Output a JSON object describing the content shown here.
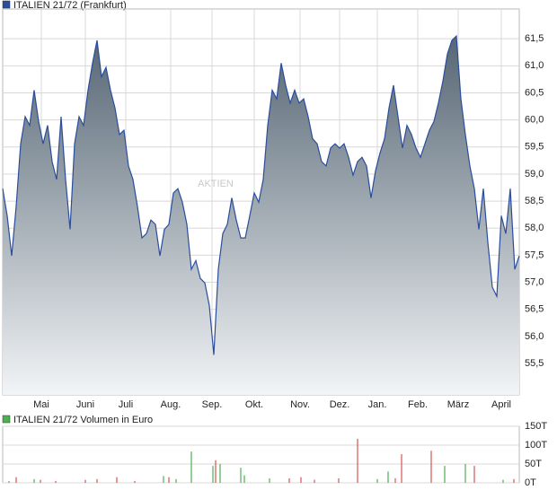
{
  "chart_data": [
    {
      "type": "area",
      "title": "ITALIEN 21/72 (Frankfurt)",
      "watermark": "AKTIEN",
      "color": "#2a4d9c",
      "fill_top": "#566674",
      "fill_bottom": "#f2f4f6",
      "values": [
        58.73,
        58.23,
        57.49,
        58.4,
        59.56,
        60.06,
        59.9,
        60.55,
        59.97,
        59.56,
        59.9,
        59.23,
        58.9,
        60.06,
        58.9,
        57.98,
        59.56,
        60.06,
        59.9,
        60.55,
        61.05,
        61.47,
        60.8,
        60.97,
        60.55,
        60.22,
        59.73,
        59.81,
        59.15,
        58.9,
        58.4,
        57.82,
        57.9,
        58.15,
        58.07,
        57.49,
        57.98,
        58.07,
        58.65,
        58.73,
        58.48,
        58.07,
        57.24,
        57.4,
        57.07,
        56.99,
        56.57,
        55.66,
        57.24,
        57.9,
        58.07,
        58.56,
        58.15,
        57.82,
        57.82,
        58.23,
        58.65,
        58.48,
        58.9,
        59.9,
        60.55,
        60.39,
        61.05,
        60.64,
        60.31,
        60.55,
        60.31,
        60.39,
        60.06,
        59.65,
        59.56,
        59.23,
        59.15,
        59.48,
        59.56,
        59.48,
        59.56,
        59.31,
        58.98,
        59.23,
        59.31,
        59.15,
        58.56,
        59.06,
        59.39,
        59.65,
        60.22,
        60.64,
        60.06,
        59.48,
        59.9,
        59.73,
        59.48,
        59.31,
        59.56,
        59.81,
        59.97,
        60.31,
        60.72,
        61.22,
        61.47,
        61.55,
        60.39,
        59.73,
        59.15,
        58.73,
        57.98,
        58.73,
        57.74,
        56.91,
        56.74,
        58.23,
        57.9,
        58.73,
        57.24,
        57.49
      ],
      "xlim": [
        0,
        115
      ],
      "xticks": [
        {
          "value": 8.6,
          "label": "Mai"
        },
        {
          "value": 18.4,
          "label": "Juni"
        },
        {
          "value": 27.4,
          "label": "Juli"
        },
        {
          "value": 37.4,
          "label": "Aug."
        },
        {
          "value": 46.6,
          "label": "Sep."
        },
        {
          "value": 56,
          "label": "Okt."
        },
        {
          "value": 66.2,
          "label": "Nov."
        },
        {
          "value": 75,
          "label": "Dez."
        },
        {
          "value": 83.4,
          "label": "Jan."
        },
        {
          "value": 92.4,
          "label": "Feb."
        },
        {
          "value": 101.4,
          "label": "März"
        },
        {
          "value": 111,
          "label": "April"
        }
      ],
      "ylim": [
        54.92,
        62.05
      ],
      "yticks": [
        {
          "value": 55.5,
          "label": "55,5"
        },
        {
          "value": 56,
          "label": "56,0"
        },
        {
          "value": 56.5,
          "label": "56,5"
        },
        {
          "value": 57,
          "label": "57,0"
        },
        {
          "value": 57.5,
          "label": "57,5"
        },
        {
          "value": 58,
          "label": "58,0"
        },
        {
          "value": 58.5,
          "label": "58,5"
        },
        {
          "value": 59,
          "label": "59,0"
        },
        {
          "value": 59.5,
          "label": "59,5"
        },
        {
          "value": 60,
          "label": "60,0"
        },
        {
          "value": 60.5,
          "label": "60,5"
        },
        {
          "value": 61,
          "label": "61,0"
        },
        {
          "value": 61.5,
          "label": "61,5"
        }
      ],
      "grid": true
    },
    {
      "type": "bar",
      "title": "ITALIEN 21/72 Volumen in Euro",
      "color": "#4caf50",
      "x": [
        1.4,
        3,
        7,
        8.4,
        11.8,
        18.4,
        21,
        25.4,
        29.4,
        35.8,
        37,
        38.6,
        42,
        46.8,
        47.4,
        48.4,
        53,
        53.8,
        59.4,
        63.8,
        66.4,
        69.4,
        74.8,
        79,
        83.4,
        85.8,
        87.4,
        88.8,
        95.4,
        98.4,
        103,
        105,
        111.4,
        113.8
      ],
      "values": [
        5,
        15,
        10,
        8,
        5,
        8,
        10,
        15,
        5,
        18,
        15,
        10,
        83,
        45,
        60,
        50,
        40,
        20,
        12,
        12,
        15,
        8,
        12,
        117,
        10,
        30,
        12,
        76,
        85,
        45,
        50,
        45,
        8,
        10
      ],
      "colors": [
        "#4caf50",
        "#d9534f",
        "#4caf50",
        "#d9534f",
        "#d9534f",
        "#d9534f",
        "#d9534f",
        "#d9534f",
        "#d9534f",
        "#4caf50",
        "#d9534f",
        "#4caf50",
        "#4caf50",
        "#4caf50",
        "#d9534f",
        "#4caf50",
        "#4caf50",
        "#4caf50",
        "#4caf50",
        "#d9534f",
        "#d9534f",
        "#d9534f",
        "#d9534f",
        "#d9534f",
        "#4caf50",
        "#4caf50",
        "#d9534f",
        "#d9534f",
        "#d9534f",
        "#4caf50",
        "#4caf50",
        "#d9534f",
        "#4caf50",
        "#d9534f"
      ],
      "xlim": [
        0,
        115
      ],
      "ylim": [
        0,
        150
      ],
      "yticks": [
        {
          "value": 0,
          "label": "0T"
        },
        {
          "value": 50,
          "label": "50T"
        },
        {
          "value": 100,
          "label": "100T"
        },
        {
          "value": 150,
          "label": "150T"
        }
      ],
      "grid": true
    }
  ]
}
